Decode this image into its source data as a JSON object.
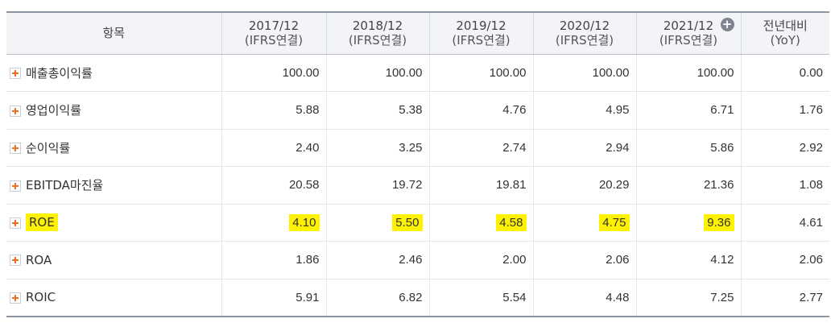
{
  "header": {
    "columns": [
      {
        "line1": "항목",
        "line2": ""
      },
      {
        "line1": "2017/12",
        "line2": "(IFRS연결)"
      },
      {
        "line1": "2018/12",
        "line2": "(IFRS연결)"
      },
      {
        "line1": "2019/12",
        "line2": "(IFRS연결)"
      },
      {
        "line1": "2020/12",
        "line2": "(IFRS연결)"
      },
      {
        "line1": "2021/12",
        "line2": "(IFRS연결)"
      },
      {
        "line1": "전년대비",
        "line2": "(YoY)"
      }
    ],
    "expand_icon": "circle-plus-icon"
  },
  "rows": [
    {
      "label": "매출총이익률",
      "values": [
        "100.00",
        "100.00",
        "100.00",
        "100.00",
        "100.00",
        "0.00"
      ],
      "highlight": false
    },
    {
      "label": "영업이익률",
      "values": [
        "5.88",
        "5.38",
        "4.76",
        "4.95",
        "6.71",
        "1.76"
      ],
      "highlight": false
    },
    {
      "label": "순이익률",
      "values": [
        "2.40",
        "3.25",
        "2.74",
        "2.94",
        "5.86",
        "2.92"
      ],
      "highlight": false
    },
    {
      "label": "EBITDA마진율",
      "values": [
        "20.58",
        "19.72",
        "19.81",
        "20.29",
        "21.36",
        "1.08"
      ],
      "highlight": false
    },
    {
      "label": "ROE",
      "values": [
        "4.10",
        "5.50",
        "4.58",
        "4.75",
        "9.36",
        "4.61"
      ],
      "highlight": true
    },
    {
      "label": "ROA",
      "values": [
        "1.86",
        "2.46",
        "2.00",
        "2.06",
        "4.12",
        "2.06"
      ],
      "highlight": false
    },
    {
      "label": "ROIC",
      "values": [
        "5.91",
        "6.82",
        "5.54",
        "4.48",
        "7.25",
        "2.77"
      ],
      "highlight": false
    }
  ],
  "colors": {
    "highlight": "#fff200",
    "plus_icon": "#f07020",
    "header_bg": "#f3f4f8"
  }
}
